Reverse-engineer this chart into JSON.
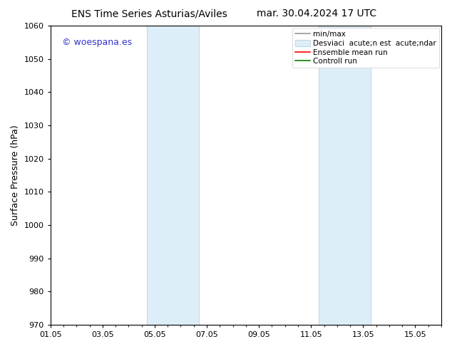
{
  "title_left": "ENS Time Series Asturias/Aviles",
  "title_right": "mar. 30.04.2024 17 UTC",
  "ylabel": "Surface Pressure (hPa)",
  "ylim": [
    970,
    1060
  ],
  "yticks": [
    970,
    980,
    990,
    1000,
    1010,
    1020,
    1030,
    1040,
    1050,
    1060
  ],
  "xlim_start": 0.0,
  "xlim_end": 15.0,
  "xtick_labels": [
    "01.05",
    "03.05",
    "05.05",
    "07.05",
    "09.05",
    "11.05",
    "13.05",
    "15.05"
  ],
  "xtick_positions": [
    0,
    2,
    4,
    6,
    8,
    10,
    12,
    14
  ],
  "shaded_bands": [
    {
      "xmin": 3.7,
      "xmax": 5.7
    },
    {
      "xmin": 10.3,
      "xmax": 12.3
    }
  ],
  "shaded_color": "#deeef8",
  "shaded_edge_color": "#c0d8ec",
  "watermark_text": "© woespana.es",
  "watermark_color": "#3333cc",
  "bg_color": "#ffffff",
  "title_fontsize": 10,
  "watermark_fontsize": 9,
  "legend_fontsize": 7.5,
  "legend_line1": "min/max",
  "legend_line2": "Desviaci  acute;n est  acute;ndar",
  "legend_line3": "Ensemble mean run",
  "legend_line4": "Controll run"
}
